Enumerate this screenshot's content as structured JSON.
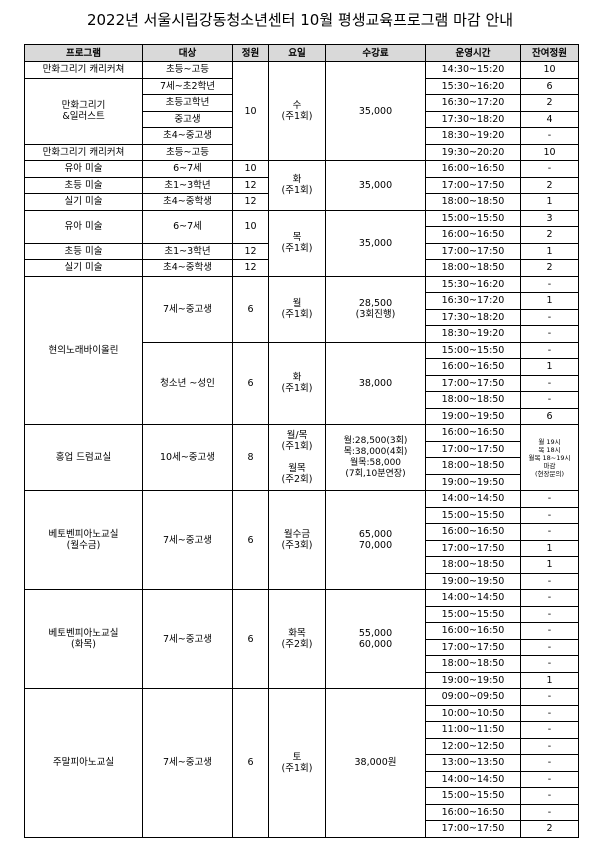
{
  "header": {
    "title": "2022년 서울시립강동청소년센터 10월 평생교육프로그램 마감 안내"
  },
  "table": {
    "headers": [
      "프로그램",
      "대상",
      "정원",
      "요일",
      "수강료",
      "운영시간",
      "잔여정원"
    ],
    "rows": [
      [
        "만화그리기 캐리커쳐",
        "초등~고등",
        "10",
        "수\n(주1회)",
        "35,000",
        "14:30~15:20",
        "10"
      ],
      [
        "만화그리기\n&일러스트",
        "7세~초2학년",
        "15:30~16:20",
        "6"
      ],
      [
        "초등고학년",
        "16:30~17:20",
        "2"
      ],
      [
        "중고생",
        "17:30~18:20",
        "4"
      ],
      [
        "초4~중고생",
        "18:30~19:20",
        "-"
      ],
      [
        "만화그리기 캐리커쳐",
        "초등~고등",
        "19:30~20:20",
        "10"
      ],
      [
        "유아 미술",
        "6~7세",
        "10",
        "화\n(주1회)",
        "35,000",
        "16:00~16:50",
        "-"
      ],
      [
        "초등 미술",
        "초1~3학년",
        "12",
        "17:00~17:50",
        "2"
      ],
      [
        "실기 미술",
        "초4~중학생",
        "12",
        "18:00~18:50",
        "1"
      ],
      [
        "유아 미술",
        "6~7세",
        "10",
        "목\n(주1회)",
        "35,000",
        "15:00~15:50",
        "3"
      ],
      [
        "16:00~16:50",
        "2"
      ],
      [
        "초등 미술",
        "초1~3학년",
        "12",
        "17:00~17:50",
        "1"
      ],
      [
        "실기 미술",
        "초4~중학생",
        "12",
        "18:00~18:50",
        "2"
      ],
      [
        "현의노래바이올린",
        "7세~중고생",
        "6",
        "월\n(주1회)",
        "28,500\n(3회진행)",
        "15:30~16:20",
        "-"
      ],
      [
        "16:30~17:20",
        "1"
      ],
      [
        "17:30~18:20",
        "-"
      ],
      [
        "18:30~19:20",
        "-"
      ],
      [
        "청소년 ~성인",
        "6",
        "화\n(주1회)",
        "38,000",
        "15:00~15:50",
        "-"
      ],
      [
        "16:00~16:50",
        "1"
      ],
      [
        "17:00~17:50",
        "-"
      ],
      [
        "18:00~18:50",
        "-"
      ],
      [
        "19:00~19:50",
        "6"
      ],
      [
        "홍업 드럼교실",
        "10세~중고생",
        "8",
        "월/목\n(주1회)\n\n월목\n(주2회)",
        "월:28,500(3회)\n목:38,000(4회)\n월목:58,000\n(7회,10분연장)",
        "16:00~16:50",
        "월 19시\n목 18시\n월목 18~19시\n마감\n(현장문의)"
      ],
      [
        "17:00~17:50"
      ],
      [
        "18:00~18:50"
      ],
      [
        "19:00~19:50"
      ],
      [
        "베토벤피아노교실\n(월수금)",
        "7세~중고생",
        "6",
        "월수금\n(주3회)",
        "65,000\n70,000",
        "14:00~14:50",
        "-"
      ],
      [
        "15:00~15:50",
        "-"
      ],
      [
        "16:00~16:50",
        "-"
      ],
      [
        "17:00~17:50",
        "1"
      ],
      [
        "18:00~18:50",
        "1"
      ],
      [
        "19:00~19:50",
        "-"
      ],
      [
        "베토벤피아노교실\n(화목)",
        "7세~중고생",
        "6",
        "화목\n(주2회)",
        "55,000\n60,000",
        "14:00~14:50",
        "-"
      ],
      [
        "15:00~15:50",
        "-"
      ],
      [
        "16:00~16:50",
        "-"
      ],
      [
        "17:00~17:50",
        "-"
      ],
      [
        "18:00~18:50",
        "-"
      ],
      [
        "19:00~19:50",
        "1"
      ],
      [
        "주말피아노교실",
        "7세~중고생",
        "6",
        "토\n(주1회)",
        "38,000원",
        "09:00~09:50",
        "-"
      ],
      [
        "10:00~10:50",
        "-"
      ],
      [
        "11:00~11:50",
        "-"
      ],
      [
        "12:00~12:50",
        "-"
      ],
      [
        "13:00~13:50",
        "-"
      ],
      [
        "14:00~14:50",
        "-"
      ],
      [
        "15:00~15:50",
        "-"
      ],
      [
        "16:00~16:50",
        "-"
      ],
      [
        "17:00~17:50",
        "2"
      ]
    ]
  }
}
